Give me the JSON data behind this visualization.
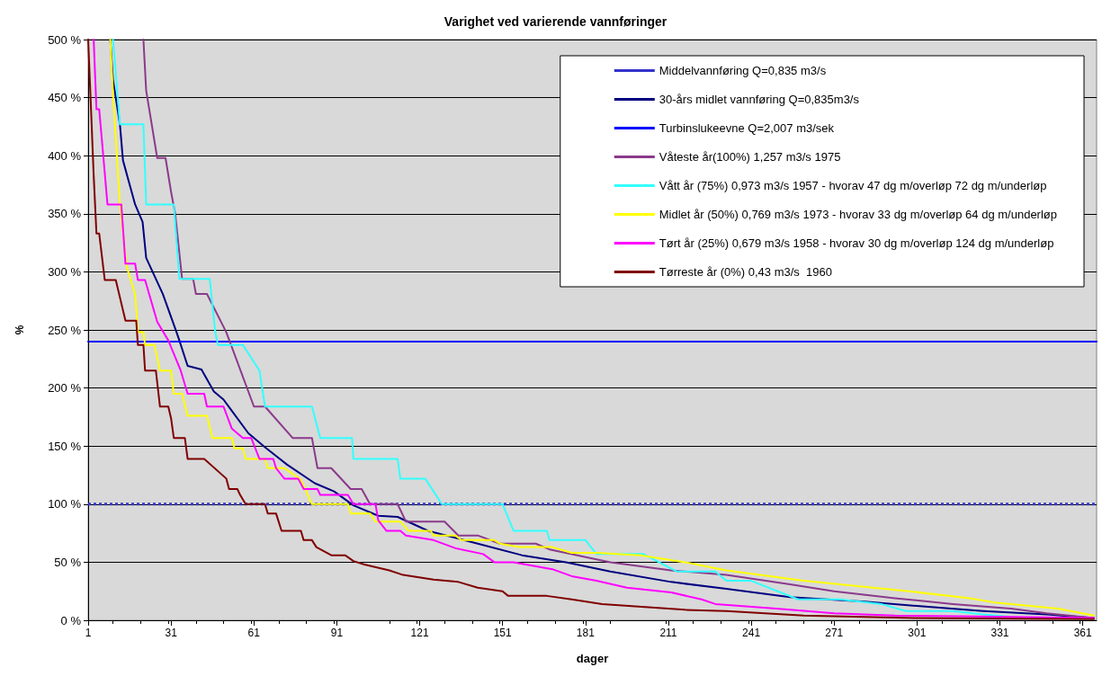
{
  "chart_data": {
    "type": "line",
    "title": "Varighet ved varierende vannføringer",
    "xlabel": "dager",
    "ylabel": "%",
    "xlim": [
      1,
      366
    ],
    "xticks": [
      1,
      31,
      61,
      91,
      121,
      151,
      181,
      211,
      241,
      271,
      301,
      331,
      361
    ],
    "ylim": [
      0,
      500
    ],
    "yticks": [
      {
        "value": 0,
        "label": "0 %"
      },
      {
        "value": 50,
        "label": "50 %"
      },
      {
        "value": 100,
        "label": "100 %"
      },
      {
        "value": 150,
        "label": "150 %"
      },
      {
        "value": 200,
        "label": "200 %"
      },
      {
        "value": 250,
        "label": "250 %"
      },
      {
        "value": 300,
        "label": "300 %"
      },
      {
        "value": 350,
        "label": "350 %"
      },
      {
        "value": 400,
        "label": "400 %"
      },
      {
        "value": 450,
        "label": "450 %"
      },
      {
        "value": 500,
        "label": "500 %"
      }
    ],
    "grid": "y",
    "legend": "top right",
    "marker": "none",
    "series": [
      {
        "name": "Middelvannføring Q=0,835 m3/s",
        "color": "#3333cc",
        "line_style": "dotted",
        "x": [
          1,
          366
        ],
        "values": [
          100,
          100
        ]
      },
      {
        "name": "30-års midlet vannføring Q=0,835m3/s",
        "color": "#000080",
        "x": [
          9,
          10,
          12.5,
          13.6,
          18,
          20.7,
          22,
          28,
          33,
          34,
          37,
          42,
          46.5,
          50,
          59,
          65,
          73,
          83,
          90,
          97,
          106,
          113,
          124,
          142,
          158,
          174,
          190,
          212,
          232,
          255,
          282,
          303,
          325,
          348,
          365
        ],
        "values": [
          500,
          465,
          427,
          396,
          358,
          343,
          312,
          281,
          248,
          241,
          219,
          216,
          197,
          190,
          161,
          149,
          134,
          118,
          111,
          99,
          90,
          89,
          77,
          66,
          56,
          50,
          42,
          33,
          27,
          20,
          16,
          12,
          8,
          5,
          2
        ]
      },
      {
        "name": "Turbinslukeevne Q=2,007 m3/sek",
        "color": "#0000ff",
        "x": [
          1,
          366
        ],
        "values": [
          240,
          240
        ]
      },
      {
        "name": "Våteste år(100%) 1,257 m3/s 1975",
        "color": "#8b3a8b",
        "x": [
          21,
          22,
          26,
          29,
          31,
          32.5,
          35,
          39,
          40,
          44,
          51,
          61,
          65,
          75,
          82,
          84,
          89,
          96,
          100,
          103,
          113,
          116,
          130,
          135,
          142,
          150,
          163,
          168,
          190,
          212,
          232,
          255,
          271,
          293,
          314,
          335,
          348,
          365
        ],
        "values": [
          500,
          456,
          398,
          398,
          369,
          350,
          294,
          294,
          281,
          281,
          248,
          184,
          184,
          157,
          157,
          131,
          131,
          113,
          113,
          100,
          100,
          85,
          85,
          73,
          73,
          66,
          66,
          61,
          50,
          43,
          39,
          31,
          25,
          19,
          14,
          10,
          6,
          2
        ]
      },
      {
        "name": "Vått år (75%) 0,973 m3/s 1957 - hvorav 47 dg m/overløp 72 dg m/underløp",
        "color": "#33ffff",
        "x": [
          10,
          12.5,
          21,
          22,
          32,
          34,
          45,
          47,
          48,
          57,
          63,
          65,
          82,
          85,
          96.5,
          97,
          113,
          114,
          123,
          129,
          151,
          155,
          167,
          168,
          181,
          185,
          202,
          214,
          228,
          232,
          241,
          258,
          273,
          288,
          297,
          314,
          325,
          340,
          365
        ],
        "values": [
          500,
          427,
          427,
          358,
          358,
          294,
          294,
          248,
          237,
          237,
          215,
          184,
          184,
          157,
          157,
          139,
          139,
          122,
          122,
          100,
          100,
          77,
          77,
          69,
          69,
          57,
          57,
          42,
          42,
          34,
          34,
          18,
          18,
          14,
          8,
          8,
          5,
          2,
          1
        ]
      },
      {
        "name": "Midlet år (50%) 0,769 m3/s 1973 - hvorav 33 dg m/overløp 64 dg m/underløp",
        "color": "#ffff00",
        "x": [
          9,
          10,
          12.5,
          15,
          18,
          19,
          21,
          21.6,
          25,
          27,
          31,
          32,
          35,
          37,
          44,
          46,
          53,
          54,
          57,
          58,
          65,
          66,
          72,
          78,
          82,
          95,
          96,
          103,
          105,
          114,
          117,
          125,
          126,
          134,
          136,
          148,
          150,
          157,
          169,
          176,
          185,
          201,
          206,
          217,
          232,
          260,
          273,
          298,
          320,
          330,
          352,
          365
        ],
        "values": [
          500,
          453,
          358,
          304,
          281,
          248,
          248,
          237,
          237,
          215,
          215,
          195,
          195,
          176,
          176,
          157,
          157,
          148,
          148,
          139,
          139,
          131,
          131,
          121,
          100,
          100,
          92,
          92,
          85,
          85,
          77,
          77,
          73,
          73,
          69,
          69,
          66,
          63,
          63,
          58,
          58,
          56,
          54,
          50,
          43,
          34,
          31,
          25,
          19,
          15,
          10,
          4
        ]
      },
      {
        "name": "Tørt år (25%) 0,679 m3/s 1958 - hvorav 30 dg m/overløp 124 dg m/underløp",
        "color": "#ff00ff",
        "x": [
          3,
          4,
          5,
          8,
          13,
          14.5,
          18,
          19,
          21.6,
          26,
          30,
          34.5,
          37,
          43,
          44,
          50,
          53,
          57,
          60,
          63,
          68,
          69,
          72,
          77,
          79,
          84,
          85,
          95,
          97,
          105,
          106,
          109,
          114,
          116,
          126,
          134,
          144,
          148,
          155,
          169,
          176,
          185,
          196,
          212,
          223,
          228,
          250,
          271,
          293,
          330,
          365
        ],
        "values": [
          500,
          440,
          440,
          358,
          358,
          307,
          307,
          293,
          293,
          257,
          241,
          215,
          195,
          195,
          184,
          184,
          165,
          157,
          157,
          139,
          139,
          131,
          122,
          122,
          113,
          113,
          108,
          108,
          100,
          100,
          86,
          77,
          77,
          73,
          69,
          62,
          57,
          50,
          50,
          44,
          38,
          34,
          28,
          24,
          18,
          14,
          10,
          6,
          4,
          3,
          2
        ]
      },
      {
        "name": "Tørreste år (0%) 0,43 m3/s  1960",
        "color": "#800000",
        "x": [
          1,
          1.7,
          3,
          4,
          5,
          7,
          11,
          14.5,
          18.4,
          19,
          21,
          21.6,
          25.5,
          27,
          30,
          31,
          32,
          36,
          37,
          43,
          51,
          52,
          55,
          56,
          58,
          65,
          66,
          69,
          71,
          78,
          79,
          82,
          83.6,
          89,
          94,
          97,
          101,
          110,
          115,
          126,
          135,
          142,
          151,
          153,
          167,
          176,
          187,
          205,
          217,
          232,
          260,
          300,
          365
        ],
        "values": [
          500,
          460,
          383,
          333,
          333,
          293,
          293,
          258,
          258,
          237,
          237,
          215,
          215,
          184,
          184,
          174,
          157,
          157,
          139,
          139,
          122,
          113,
          113,
          108,
          100,
          100,
          92,
          92,
          77,
          77,
          69,
          69,
          63,
          56,
          56,
          51,
          48,
          43,
          39,
          35,
          33,
          28,
          25,
          21,
          21,
          18,
          14,
          11,
          9,
          8,
          4,
          2,
          1
        ]
      }
    ]
  }
}
